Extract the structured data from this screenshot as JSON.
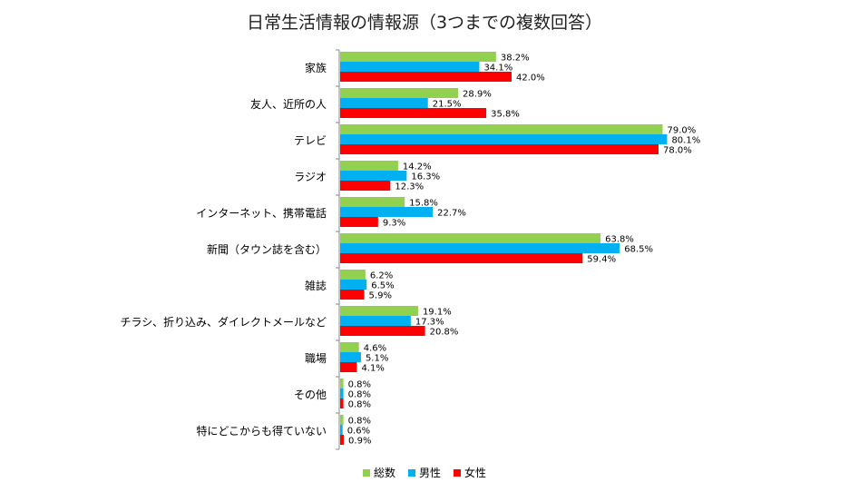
{
  "chart_data": {
    "type": "bar",
    "orientation": "horizontal",
    "title": "日常生活情報の情報源（3つまでの複数回答）",
    "categories": [
      "家族",
      "友人、近所の人",
      "テレビ",
      "ラジオ",
      "インターネット、携帯電話",
      "新聞（タウン誌を含む）",
      "雑誌",
      "チラシ、折り込み、ダイレクトメールなど",
      "職場",
      "その他",
      "特にどこからも得ていない"
    ],
    "series": [
      {
        "name": "総数",
        "color": "#92d050",
        "values": [
          38.2,
          28.9,
          79.0,
          14.2,
          15.8,
          63.8,
          6.2,
          19.1,
          4.6,
          0.8,
          0.8
        ]
      },
      {
        "name": "男性",
        "color": "#00b0f0",
        "values": [
          34.1,
          21.5,
          80.1,
          16.3,
          22.7,
          68.5,
          6.5,
          17.3,
          5.1,
          0.8,
          0.6
        ]
      },
      {
        "name": "女性",
        "color": "#ff0000",
        "values": [
          42.0,
          35.8,
          78.0,
          12.3,
          9.3,
          59.4,
          5.9,
          20.8,
          4.1,
          0.8,
          0.9
        ]
      }
    ],
    "value_suffix": "%",
    "xlim": [
      0,
      100
    ],
    "grid": false,
    "legend_position": "bottom"
  }
}
